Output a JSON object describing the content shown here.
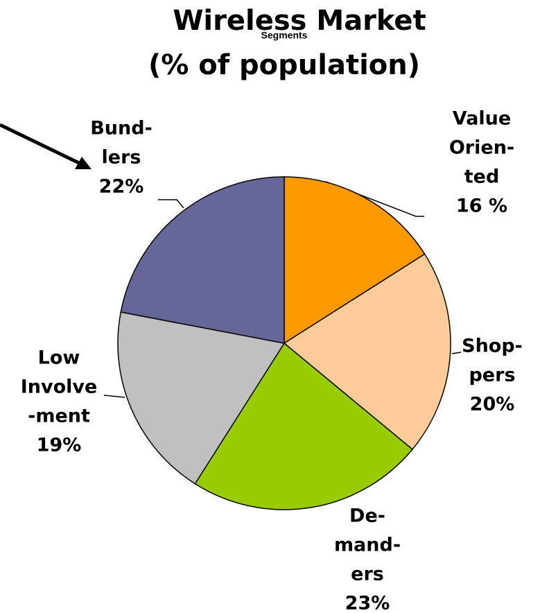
{
  "chart_data": {
    "type": "pie",
    "title": "Wireless Market",
    "subtitle": "(% of population)",
    "annotation": "Segments",
    "categories": [
      [
        "Value",
        "Orien-",
        "ted"
      ],
      [
        "Shop-",
        "pers"
      ],
      [
        "De-",
        "mand-",
        "ers"
      ],
      [
        "Low",
        "Involve",
        "-ment"
      ],
      [
        "Bund-",
        "lers"
      ]
    ],
    "values": [
      16,
      20,
      23,
      19,
      22
    ],
    "value_labels": [
      "16 %",
      "20%",
      "23%",
      "19%",
      "22%"
    ],
    "colors": [
      "#ff9900",
      "#ffcc99",
      "#99cc00",
      "#c0c0c0",
      "#666699"
    ]
  }
}
